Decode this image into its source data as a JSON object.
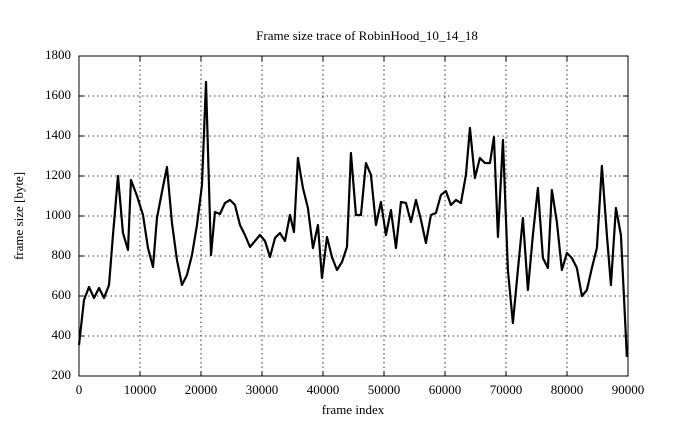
{
  "chart_data": {
    "type": "line",
    "title": "Frame size trace of RobinHood_10_14_18",
    "x_label": "frame index",
    "y_label": "frame size [byte]",
    "xlim": [
      0,
      90000
    ],
    "xticks": [
      0,
      10000,
      20000,
      30000,
      40000,
      50000,
      60000,
      70000,
      80000,
      90000
    ],
    "ylim": [
      200,
      1800
    ],
    "yticks": [
      200,
      400,
      600,
      800,
      1000,
      1200,
      1400,
      1600,
      1800
    ],
    "grid": true,
    "series": [
      {
        "color": "#000000",
        "x": [
          0,
          820,
          1640,
          2460,
          3280,
          4100,
          4920,
          5570,
          6390,
          7210,
          8030,
          8520,
          9510,
          10490,
          11310,
          12130,
          12780,
          13600,
          14420,
          15240,
          16060,
          16880,
          17700,
          18520,
          19340,
          20160,
          20820,
          21640,
          22290,
          23110,
          23930,
          24750,
          25570,
          26390,
          27210,
          28030,
          28850,
          29670,
          30490,
          31310,
          32130,
          32940,
          33760,
          34580,
          35240,
          35890,
          36710,
          37530,
          38350,
          39170,
          39830,
          40650,
          41470,
          42290,
          43110,
          43930,
          44580,
          45400,
          46220,
          47040,
          47860,
          48680,
          49500,
          50320,
          51140,
          51960,
          52780,
          53600,
          54420,
          55240,
          56060,
          56870,
          57690,
          58510,
          59330,
          60150,
          60970,
          61790,
          62610,
          63430,
          64090,
          64900,
          65720,
          66540,
          67370,
          68020,
          68680,
          69500,
          70310,
          71130,
          71950,
          72770,
          73590,
          74410,
          75230,
          76050,
          76870,
          77520,
          78340,
          79160,
          79980,
          80800,
          81620,
          82440,
          83260,
          84080,
          84900,
          85720,
          86540,
          87200,
          88020,
          88840,
          89820
        ],
        "values": [
          355,
          580,
          645,
          590,
          640,
          590,
          655,
          905,
          1200,
          915,
          830,
          1180,
          1100,
          1005,
          840,
          745,
          990,
          1120,
          1245,
          965,
          780,
          655,
          705,
          805,
          955,
          1155,
          1670,
          805,
          1020,
          1010,
          1065,
          1080,
          1055,
          955,
          905,
          845,
          875,
          905,
          875,
          795,
          890,
          915,
          875,
          1005,
          920,
          1290,
          1140,
          1040,
          840,
          955,
          690,
          895,
          795,
          730,
          770,
          845,
          1315,
          1005,
          1005,
          1265,
          1205,
          955,
          1070,
          905,
          1030,
          840,
          1070,
          1065,
          970,
          1080,
          980,
          865,
          1005,
          1015,
          1105,
          1125,
          1055,
          1080,
          1065,
          1205,
          1440,
          1190,
          1290,
          1265,
          1265,
          1395,
          895,
          1380,
          730,
          465,
          730,
          990,
          630,
          905,
          1140,
          790,
          740,
          1130,
          970,
          730,
          815,
          790,
          740,
          600,
          630,
          740,
          840,
          1250,
          905,
          655,
          1040,
          905,
          295
        ]
      }
    ]
  }
}
